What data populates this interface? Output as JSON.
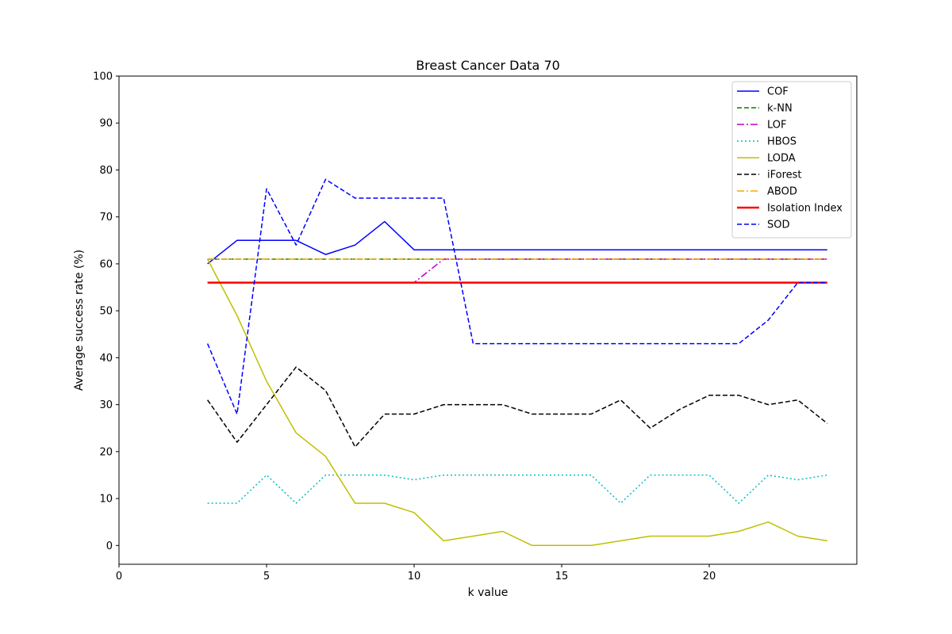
{
  "chart_data": {
    "type": "line",
    "title": "Breast Cancer Data 70",
    "xlabel": "k value",
    "ylabel": "Average success rate (%)",
    "xlim": [
      0,
      25
    ],
    "ylim": [
      -4,
      100
    ],
    "xticks": [
      0,
      5,
      10,
      15,
      20
    ],
    "yticks": [
      0,
      10,
      20,
      30,
      40,
      50,
      60,
      70,
      80,
      90,
      100
    ],
    "grid": false,
    "legend_position": "top-right",
    "x": [
      3,
      4,
      5,
      6,
      7,
      8,
      9,
      10,
      11,
      12,
      13,
      14,
      15,
      16,
      17,
      18,
      19,
      20,
      21,
      22,
      23,
      24
    ],
    "series": [
      {
        "name": "COF",
        "color": "#0000ff",
        "style": "solid",
        "width": 1.5,
        "values": [
          60,
          65,
          65,
          65,
          62,
          64,
          69,
          63,
          63,
          63,
          63,
          63,
          63,
          63,
          63,
          63,
          63,
          63,
          63,
          63,
          63,
          63
        ]
      },
      {
        "name": "k-NN",
        "color": "#008000",
        "style": "dashed",
        "width": 1.5,
        "values": [
          61,
          61,
          61,
          61,
          61,
          61,
          61,
          61,
          61,
          61,
          61,
          61,
          61,
          61,
          61,
          61,
          61,
          61,
          61,
          61,
          61,
          61
        ]
      },
      {
        "name": "LOF",
        "color": "#bf00bf",
        "style": "dashdot",
        "width": 1.5,
        "values": [
          56,
          56,
          56,
          56,
          56,
          56,
          56,
          56,
          61,
          61,
          61,
          61,
          61,
          61,
          61,
          61,
          61,
          61,
          61,
          61,
          61,
          61
        ]
      },
      {
        "name": "HBOS",
        "color": "#00bfbf",
        "style": "dotted",
        "width": 1.5,
        "values": [
          9,
          9,
          15,
          9,
          15,
          15,
          15,
          14,
          15,
          15,
          15,
          15,
          15,
          15,
          9,
          15,
          15,
          15,
          9,
          15,
          14,
          15
        ]
      },
      {
        "name": "LODA",
        "color": "#bfbf00",
        "style": "solid",
        "width": 1.5,
        "values": [
          61,
          49,
          35,
          24,
          19,
          9,
          9,
          7,
          1,
          2,
          3,
          0,
          0,
          0,
          1,
          2,
          2,
          2,
          3,
          5,
          2,
          1
        ]
      },
      {
        "name": "iForest",
        "color": "#000000",
        "style": "dashed",
        "width": 1.5,
        "values": [
          31,
          22,
          30,
          38,
          33,
          21,
          28,
          28,
          30,
          30,
          30,
          28,
          28,
          28,
          31,
          25,
          29,
          32,
          32,
          30,
          31,
          26
        ]
      },
      {
        "name": "ABOD",
        "color": "#ffa500",
        "style": "dashdot",
        "width": 1.5,
        "values": [
          61,
          61,
          61,
          61,
          61,
          61,
          61,
          61,
          61,
          61,
          61,
          61,
          61,
          61,
          61,
          61,
          61,
          61,
          61,
          61,
          61,
          61
        ]
      },
      {
        "name": "Isolation Index",
        "color": "#ff0000",
        "style": "solid",
        "width": 2.5,
        "values": [
          56,
          56,
          56,
          56,
          56,
          56,
          56,
          56,
          56,
          56,
          56,
          56,
          56,
          56,
          56,
          56,
          56,
          56,
          56,
          56,
          56,
          56
        ]
      },
      {
        "name": "SOD",
        "color": "#0000ff",
        "style": "dashed",
        "width": 1.5,
        "values": [
          43,
          28,
          76,
          64,
          78,
          74,
          74,
          74,
          74,
          43,
          43,
          43,
          43,
          43,
          43,
          43,
          43,
          43,
          43,
          48,
          56,
          56
        ]
      }
    ]
  }
}
